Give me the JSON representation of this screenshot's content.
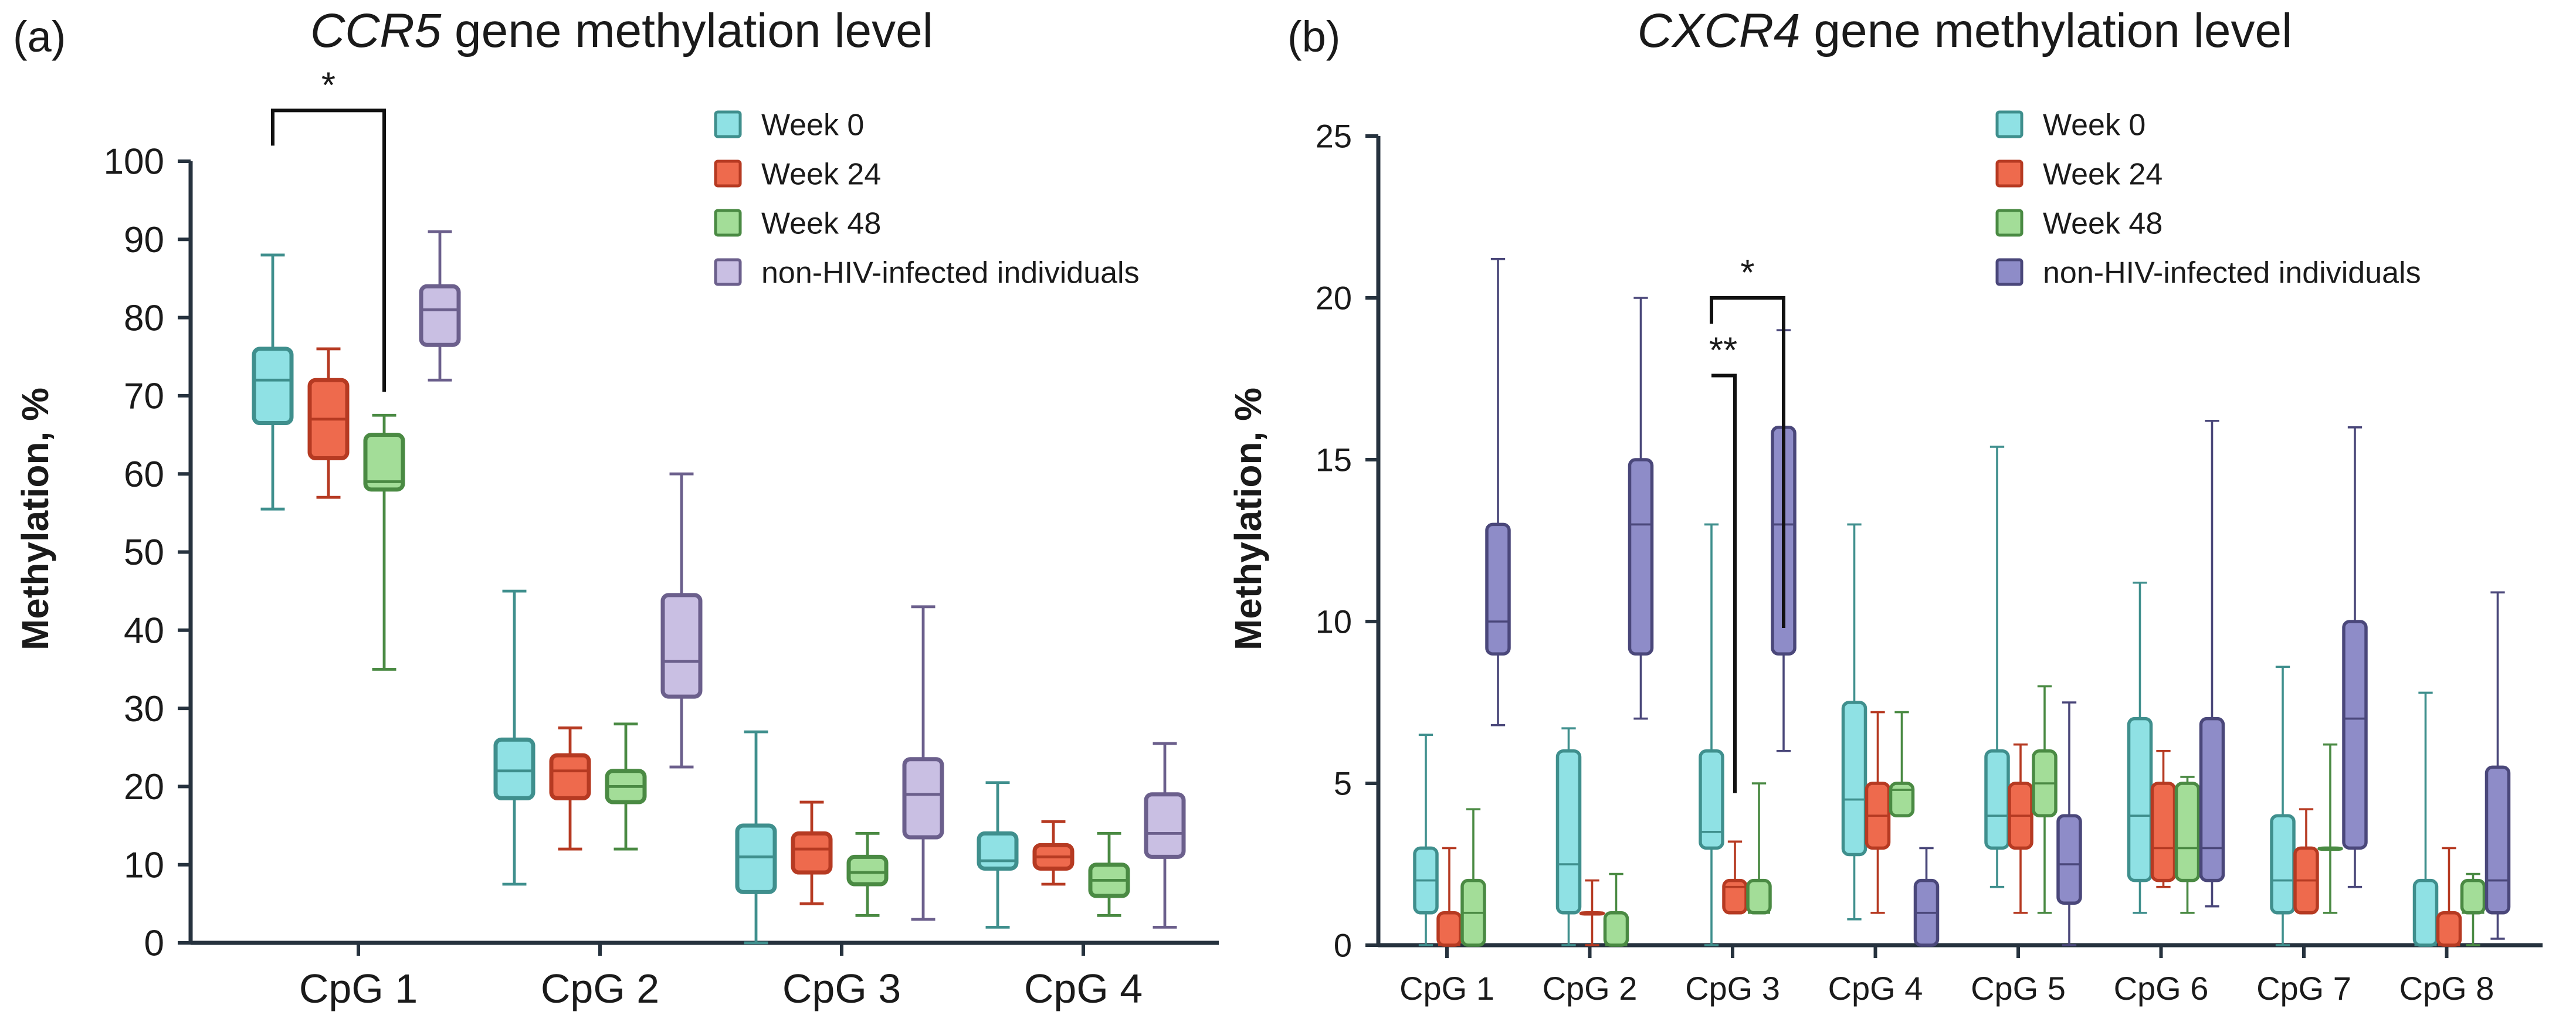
{
  "colors": {
    "week0_fill": "#8fe1e4",
    "week0_stroke": "#3f8f8d",
    "week24_fill": "#ee6a4d",
    "week24_stroke": "#b63a22",
    "week48_fill": "#a3dd98",
    "week48_stroke": "#4a8a43",
    "nonhiv_a_fill": "#c9bfe3",
    "nonhiv_a_stroke": "#6b5f8c",
    "nonhiv_b_fill": "#8e8cc8",
    "nonhiv_b_stroke": "#4a477a",
    "axis": "#26323e"
  },
  "chart_data": [
    {
      "panel": "(a)",
      "type": "box",
      "title_gene": "CCR5",
      "title_rest": " gene methylation level",
      "ylabel": "Methylation, %",
      "ylim": [
        0,
        100
      ],
      "yticks": [
        0,
        10,
        20,
        30,
        40,
        50,
        60,
        70,
        80,
        90,
        100
      ],
      "categories": [
        "CpG 1",
        "CpG 2",
        "CpG 3",
        "CpG 4"
      ],
      "legend": [
        "Week 0",
        "Week 24",
        "Week 48",
        "non-HIV-infected individuals"
      ],
      "series": [
        {
          "name": "Week 0",
          "boxes": [
            {
              "min": 55.5,
              "q1": 66.5,
              "median": 72,
              "q3": 76,
              "max": 88
            },
            {
              "min": 7.5,
              "q1": 18.5,
              "median": 22,
              "q3": 26,
              "max": 45
            },
            {
              "min": 0,
              "q1": 6.5,
              "median": 11,
              "q3": 15,
              "max": 27
            },
            {
              "min": 2,
              "q1": 9.5,
              "median": 10.5,
              "q3": 14,
              "max": 20.5
            }
          ]
        },
        {
          "name": "Week 24",
          "boxes": [
            {
              "min": 57,
              "q1": 62,
              "median": 67,
              "q3": 72,
              "max": 76
            },
            {
              "min": 12,
              "q1": 18.5,
              "median": 22,
              "q3": 24,
              "max": 27.5
            },
            {
              "min": 5,
              "q1": 9,
              "median": 12,
              "q3": 14,
              "max": 18
            },
            {
              "min": 7.5,
              "q1": 9.5,
              "median": 11,
              "q3": 12.5,
              "max": 15.5
            }
          ]
        },
        {
          "name": "Week 48",
          "boxes": [
            {
              "min": 35,
              "q1": 58,
              "median": 59,
              "q3": 65,
              "max": 67.5
            },
            {
              "min": 12,
              "q1": 18,
              "median": 20,
              "q3": 22,
              "max": 28
            },
            {
              "min": 3.5,
              "q1": 7.5,
              "median": 9,
              "q3": 11,
              "max": 14
            },
            {
              "min": 3.5,
              "q1": 6,
              "median": 8,
              "q3": 10,
              "max": 14
            }
          ]
        },
        {
          "name": "non-HIV-infected individuals",
          "boxes": [
            {
              "min": 72,
              "q1": 76.5,
              "median": 81,
              "q3": 84,
              "max": 91
            },
            {
              "min": 22.5,
              "q1": 31.5,
              "median": 36,
              "q3": 44.5,
              "max": 60
            },
            {
              "min": 3,
              "q1": 13.5,
              "median": 19,
              "q3": 23.5,
              "max": 43
            },
            {
              "min": 2,
              "q1": 11,
              "median": 14,
              "q3": 19,
              "max": 25.5
            }
          ]
        }
      ],
      "annotations": [
        {
          "label": "*",
          "category": "CpG 1",
          "from_series": 0,
          "to_series": 2,
          "top": 106.5,
          "left_end": 102,
          "right_end": 70.5
        }
      ]
    },
    {
      "panel": "(b)",
      "type": "box",
      "title_gene": "CXCR4",
      "title_rest": " gene methylation level",
      "ylabel": "Methylation, %",
      "ylim": [
        0,
        25
      ],
      "yticks": [
        0,
        5,
        10,
        15,
        20,
        25
      ],
      "categories": [
        "CpG 1",
        "CpG 2",
        "CpG 3",
        "CpG 4",
        "CpG 5",
        "CpG 6",
        "CpG 7",
        "CpG 8"
      ],
      "legend": [
        "Week 0",
        "Week 24",
        "Week 48",
        "non-HIV-infected individuals"
      ],
      "series": [
        {
          "name": "Week 0",
          "boxes": [
            {
              "min": 0,
              "q1": 1,
              "median": 2,
              "q3": 3,
              "max": 6.5
            },
            {
              "min": 0,
              "q1": 1,
              "median": 2.5,
              "q3": 6,
              "max": 6.7
            },
            {
              "min": 0,
              "q1": 3,
              "median": 3.5,
              "q3": 6,
              "max": 13
            },
            {
              "min": 0.8,
              "q1": 2.8,
              "median": 4.5,
              "q3": 7.5,
              "max": 13
            },
            {
              "min": 1.8,
              "q1": 3,
              "median": 4,
              "q3": 6,
              "max": 15.4
            },
            {
              "min": 1,
              "q1": 2,
              "median": 4,
              "q3": 7,
              "max": 11.2
            },
            {
              "min": 0,
              "q1": 1,
              "median": 2,
              "q3": 4,
              "max": 8.6
            },
            {
              "min": 0,
              "q1": 0,
              "median": 0,
              "q3": 2,
              "max": 7.8
            }
          ]
        },
        {
          "name": "Week 24",
          "boxes": [
            {
              "min": 0,
              "q1": 0,
              "median": 0,
              "q3": 1,
              "max": 3
            },
            {
              "min": 0,
              "q1": 1,
              "median": 1,
              "q3": 1,
              "max": 2
            },
            {
              "min": 1,
              "q1": 1,
              "median": 1.8,
              "q3": 2,
              "max": 3.2
            },
            {
              "min": 1,
              "q1": 3,
              "median": 4,
              "q3": 5,
              "max": 7.2
            },
            {
              "min": 1,
              "q1": 3,
              "median": 4,
              "q3": 5,
              "max": 6.2
            },
            {
              "min": 1.8,
              "q1": 2,
              "median": 3,
              "q3": 5,
              "max": 6
            },
            {
              "min": 1,
              "q1": 1,
              "median": 2,
              "q3": 3,
              "max": 4.2
            },
            {
              "min": 0,
              "q1": 0,
              "median": 0,
              "q3": 1,
              "max": 3
            }
          ]
        },
        {
          "name": "Week 48",
          "boxes": [
            {
              "min": 0,
              "q1": 0,
              "median": 1,
              "q3": 2,
              "max": 4.2
            },
            {
              "min": 0,
              "q1": 0,
              "median": 0,
              "q3": 1,
              "max": 2.2
            },
            {
              "min": 1,
              "q1": 1,
              "median": 1,
              "q3": 2,
              "max": 5
            },
            {
              "min": 4,
              "q1": 4,
              "median": 4.8,
              "q3": 5,
              "max": 7.2
            },
            {
              "min": 1,
              "q1": 4,
              "median": 5,
              "q3": 6,
              "max": 8
            },
            {
              "min": 1,
              "q1": 2,
              "median": 3,
              "q3": 5,
              "max": 5.2
            },
            {
              "min": 1,
              "q1": 3,
              "median": 3,
              "q3": 3,
              "max": 6.2
            },
            {
              "min": 0,
              "q1": 1,
              "median": 1,
              "q3": 2,
              "max": 2.2
            }
          ]
        },
        {
          "name": "non-HIV-infected individuals",
          "boxes": [
            {
              "min": 6.8,
              "q1": 9,
              "median": 10,
              "q3": 13,
              "max": 21.2
            },
            {
              "min": 7,
              "q1": 9,
              "median": 13,
              "q3": 15,
              "max": 20
            },
            {
              "min": 6,
              "q1": 9,
              "median": 13,
              "q3": 16,
              "max": 19
            },
            {
              "min": 0,
              "q1": 0,
              "median": 1,
              "q3": 2,
              "max": 3
            },
            {
              "min": 0,
              "q1": 1.3,
              "median": 2.5,
              "q3": 4,
              "max": 7.5
            },
            {
              "min": 1.2,
              "q1": 2,
              "median": 3,
              "q3": 7,
              "max": 16.2
            },
            {
              "min": 1.8,
              "q1": 3,
              "median": 7,
              "q3": 10,
              "max": 16
            },
            {
              "min": 0.2,
              "q1": 1,
              "median": 2,
              "q3": 5.5,
              "max": 10.9
            }
          ]
        }
      ],
      "annotations": [
        {
          "label": "**",
          "category": "CpG 3",
          "from_series": 0,
          "to_series": 1,
          "top": 17.6,
          "left_end": 17.6,
          "right_end": 4.7
        },
        {
          "label": "*",
          "category": "CpG 3",
          "from_series": 0,
          "to_series": 3,
          "top": 20,
          "left_end": 19.2,
          "right_end": 9.8
        }
      ]
    }
  ]
}
